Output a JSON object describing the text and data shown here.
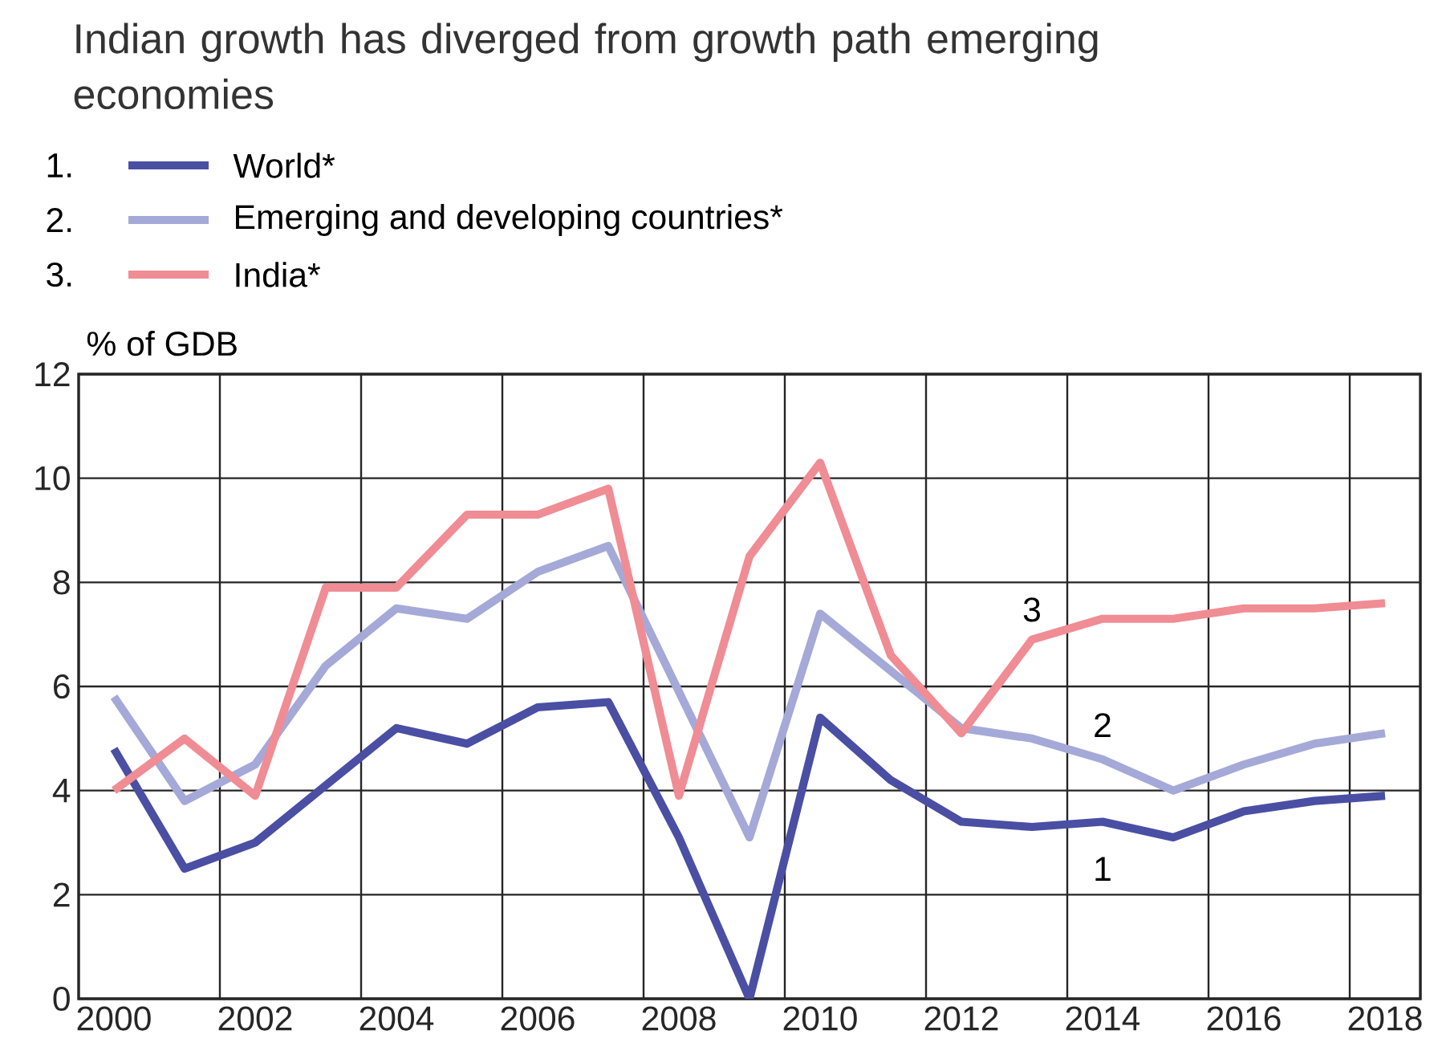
{
  "chart_data": {
    "type": "line",
    "title": "Indian growth has diverged from growth path emerging economies",
    "ylabel": "% of GDB",
    "x": [
      2000,
      2001,
      2002,
      2003,
      2004,
      2005,
      2006,
      2007,
      2008,
      2009,
      2010,
      2011,
      2012,
      2013,
      2014,
      2015,
      2016,
      2017,
      2018
    ],
    "series": [
      {
        "name": "World*",
        "color": "#4a4fa3",
        "values": [
          4.8,
          2.5,
          3.0,
          4.1,
          5.2,
          4.9,
          5.6,
          5.7,
          3.1,
          0,
          5.4,
          4.2,
          3.4,
          3.3,
          3.4,
          3.1,
          3.6,
          3.8,
          3.9
        ]
      },
      {
        "name": "Emerging and developing countries*",
        "color": "#a5a9d8",
        "values": [
          5.8,
          3.8,
          4.5,
          6.4,
          7.5,
          7.3,
          8.2,
          8.7,
          5.9,
          3.1,
          7.4,
          6.3,
          5.2,
          5.0,
          4.6,
          4.0,
          4.5,
          4.9,
          5.1
        ]
      },
      {
        "name": "India*",
        "color": "#f08c94",
        "values": [
          4.0,
          5.0,
          3.9,
          7.9,
          7.9,
          9.3,
          9.3,
          9.8,
          3.9,
          8.5,
          10.3,
          6.6,
          5.1,
          6.9,
          7.3,
          7.3,
          7.5,
          7.5,
          7.6
        ]
      }
    ],
    "annotations": [
      "1.",
      "2.",
      "3.",
      "1",
      "2",
      "3"
    ],
    "xlim": [
      1999.5,
      2018.5
    ],
    "xticks": [
      2000,
      2002,
      2004,
      2006,
      2008,
      2010,
      2012,
      2014,
      2016,
      2018,
      {
        "value": 2001.5,
        "label": null
      },
      {
        "value": 2003.5,
        "label": null
      },
      {
        "value": 2005.5,
        "label": null
      },
      {
        "value": 2007.5,
        "label": null
      },
      {
        "value": 2009.5,
        "label": null
      },
      {
        "value": 2011.5,
        "label": null
      },
      {
        "value": 2013.5,
        "label": null
      },
      {
        "value": 2015.5,
        "label": null
      },
      {
        "value": 2017.5,
        "label": null
      }
    ],
    "ylim": [
      0,
      12
    ],
    "yticks": [
      0,
      2,
      4,
      6,
      8,
      10,
      12
    ],
    "grid": true,
    "legend": "top left",
    "marker": "none",
    "line_style": "solid"
  }
}
